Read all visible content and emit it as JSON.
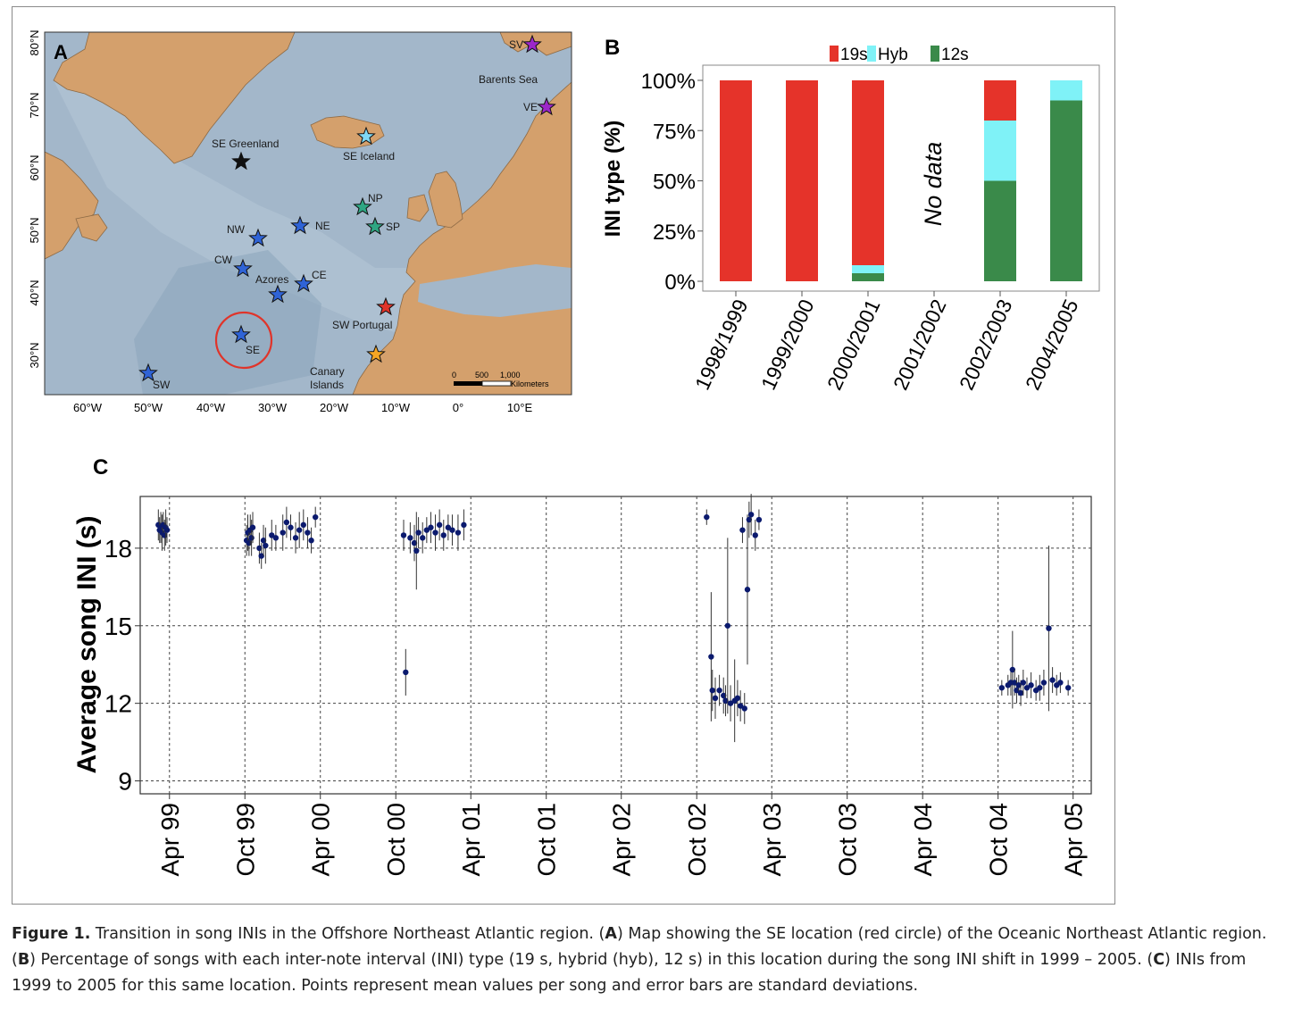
{
  "panels": {
    "a": {
      "letter": "A",
      "lat_labels": [
        "80°N",
        "70°N",
        "60°N",
        "50°N",
        "40°N",
        "30°N"
      ],
      "lon_labels": [
        "60°W",
        "50°W",
        "40°W",
        "30°W",
        "20°W",
        "10°W",
        "0°",
        "10°E"
      ],
      "places": {
        "barents": "Barents Sea",
        "se_greenland": "SE Greenland",
        "se_iceland": "SE Iceland",
        "azores": "Azores",
        "sw_portugal": "SW Portugal",
        "canary": [
          "Canary",
          "Islands"
        ]
      },
      "stations": [
        {
          "code": "SV",
          "color": "#9c27c9"
        },
        {
          "code": "VE",
          "color": "#9c27c9"
        },
        {
          "code": "",
          "color": "#111111"
        },
        {
          "code": "",
          "color": "#7fd8f5"
        },
        {
          "code": "NP",
          "color": "#2fa683"
        },
        {
          "code": "SP",
          "color": "#2fa683"
        },
        {
          "code": "NE",
          "color": "#2f63d6"
        },
        {
          "code": "NW",
          "color": "#2f63d6"
        },
        {
          "code": "CW",
          "color": "#2f63d6"
        },
        {
          "code": "CE",
          "color": "#2f63d6"
        },
        {
          "code": "",
          "color": "#2f63d6"
        },
        {
          "code": "SE",
          "color": "#2f63d6"
        },
        {
          "code": "",
          "color": "#e0342a"
        },
        {
          "code": "",
          "color": "#f5a623"
        },
        {
          "code": "SW",
          "color": "#2f63d6"
        }
      ],
      "scale": {
        "ticks": [
          "0",
          "500",
          "1,000"
        ],
        "unit": "Kilometers"
      },
      "colors": {
        "ocean": "#9fb4c8",
        "land": "#d4a06c",
        "circle": "#e0342a"
      }
    },
    "b": {
      "letter": "B",
      "chart_data": {
        "type": "bar",
        "stacked": true,
        "categories": [
          "1998/1999",
          "1999/2000",
          "2000/2001",
          "2001/2002",
          "2002/2003",
          "2004/2005"
        ],
        "series": [
          {
            "name": "12s",
            "color": "#3a8a4a",
            "values": [
              0,
              0,
              4,
              0,
              50,
              90
            ]
          },
          {
            "name": "Hyb",
            "color": "#7ff2f7",
            "values": [
              0,
              0,
              4,
              0,
              30,
              10
            ]
          },
          {
            "name": "19s",
            "color": "#e5332a",
            "values": [
              100,
              100,
              92,
              0,
              20,
              0
            ]
          }
        ],
        "ylabel": "INI type (%)",
        "yticks": [
          "0%",
          "25%",
          "50%",
          "75%",
          "100%"
        ],
        "ylim": [
          0,
          100
        ],
        "annotation": "No data",
        "legend_position": "top"
      }
    },
    "c": {
      "letter": "C",
      "chart_data": {
        "type": "scatter",
        "error_bars": true,
        "ylabel": "Average song INI (s)",
        "yticks": [
          9,
          12,
          15,
          18
        ],
        "ylim": [
          8.5,
          20
        ],
        "xlim": [
          "1999-01-20",
          "2005-05-15"
        ],
        "xticks": [
          {
            "label": "Apr 99",
            "date": "1999-04-01"
          },
          {
            "label": "Oct 99",
            "date": "1999-10-01"
          },
          {
            "label": "Apr 00",
            "date": "2000-04-01"
          },
          {
            "label": "Oct 00",
            "date": "2000-10-01"
          },
          {
            "label": "Apr 01",
            "date": "2001-04-01"
          },
          {
            "label": "Oct 01",
            "date": "2001-10-01"
          },
          {
            "label": "Apr 02",
            "date": "2002-04-01"
          },
          {
            "label": "Oct 02",
            "date": "2002-10-01"
          },
          {
            "label": "Apr 03",
            "date": "2003-04-01"
          },
          {
            "label": "Oct 03",
            "date": "2003-10-01"
          },
          {
            "label": "Apr 04",
            "date": "2004-04-01"
          },
          {
            "label": "Oct 04",
            "date": "2004-10-01"
          },
          {
            "label": "Apr 05",
            "date": "2005-04-01"
          }
        ],
        "grid": true,
        "point_color": "#0b1a6e",
        "points": [
          {
            "x": "1999-03-05",
            "y": 18.9,
            "sd": 0.6
          },
          {
            "x": "1999-03-08",
            "y": 18.7,
            "sd": 0.5
          },
          {
            "x": "1999-03-11",
            "y": 18.8,
            "sd": 0.6
          },
          {
            "x": "1999-03-14",
            "y": 18.6,
            "sd": 0.7
          },
          {
            "x": "1999-03-17",
            "y": 18.9,
            "sd": 0.5
          },
          {
            "x": "1999-03-20",
            "y": 18.5,
            "sd": 0.6
          },
          {
            "x": "1999-03-23",
            "y": 18.8,
            "sd": 0.7
          },
          {
            "x": "1999-03-26",
            "y": 18.7,
            "sd": 0.5
          },
          {
            "x": "1999-10-05",
            "y": 18.3,
            "sd": 0.6
          },
          {
            "x": "1999-10-08",
            "y": 18.6,
            "sd": 0.7
          },
          {
            "x": "1999-10-11",
            "y": 18.2,
            "sd": 0.5
          },
          {
            "x": "1999-10-14",
            "y": 18.7,
            "sd": 0.6
          },
          {
            "x": "1999-10-17",
            "y": 18.4,
            "sd": 0.7
          },
          {
            "x": "1999-10-20",
            "y": 18.8,
            "sd": 0.6
          },
          {
            "x": "1999-11-05",
            "y": 18.0,
            "sd": 0.6
          },
          {
            "x": "1999-11-10",
            "y": 17.7,
            "sd": 0.5
          },
          {
            "x": "1999-11-15",
            "y": 18.3,
            "sd": 0.6
          },
          {
            "x": "1999-11-20",
            "y": 18.1,
            "sd": 0.7
          },
          {
            "x": "1999-12-05",
            "y": 18.5,
            "sd": 0.6
          },
          {
            "x": "1999-12-15",
            "y": 18.4,
            "sd": 0.5
          },
          {
            "x": "2000-01-01",
            "y": 18.6,
            "sd": 0.7
          },
          {
            "x": "2000-01-10",
            "y": 19.0,
            "sd": 0.6
          },
          {
            "x": "2000-01-20",
            "y": 18.8,
            "sd": 0.5
          },
          {
            "x": "2000-02-01",
            "y": 18.4,
            "sd": 0.6
          },
          {
            "x": "2000-02-10",
            "y": 18.7,
            "sd": 0.7
          },
          {
            "x": "2000-02-20",
            "y": 18.9,
            "sd": 0.6
          },
          {
            "x": "2000-03-01",
            "y": 18.6,
            "sd": 0.6
          },
          {
            "x": "2000-03-10",
            "y": 18.3,
            "sd": 0.5
          },
          {
            "x": "2000-03-20",
            "y": 19.2,
            "sd": 0.4
          },
          {
            "x": "2000-10-20",
            "y": 18.5,
            "sd": 0.6
          },
          {
            "x": "2000-10-25",
            "y": 13.2,
            "sd": 0.9
          },
          {
            "x": "2000-11-05",
            "y": 18.4,
            "sd": 0.6
          },
          {
            "x": "2000-11-15",
            "y": 18.2,
            "sd": 0.7
          },
          {
            "x": "2000-11-20",
            "y": 17.9,
            "sd": 1.5
          },
          {
            "x": "2000-11-25",
            "y": 18.6,
            "sd": 0.6
          },
          {
            "x": "2000-12-05",
            "y": 18.4,
            "sd": 0.6
          },
          {
            "x": "2000-12-15",
            "y": 18.7,
            "sd": 0.5
          },
          {
            "x": "2000-12-25",
            "y": 18.8,
            "sd": 0.6
          },
          {
            "x": "2001-01-05",
            "y": 18.6,
            "sd": 0.7
          },
          {
            "x": "2001-01-15",
            "y": 18.9,
            "sd": 0.6
          },
          {
            "x": "2001-01-25",
            "y": 18.5,
            "sd": 0.6
          },
          {
            "x": "2001-02-05",
            "y": 18.8,
            "sd": 0.5
          },
          {
            "x": "2001-02-15",
            "y": 18.7,
            "sd": 0.6
          },
          {
            "x": "2001-03-01",
            "y": 18.6,
            "sd": 0.7
          },
          {
            "x": "2001-03-15",
            "y": 18.9,
            "sd": 0.6
          },
          {
            "x": "2002-10-25",
            "y": 19.2,
            "sd": 0.3
          },
          {
            "x": "2002-11-05",
            "y": 13.8,
            "sd": 2.5
          },
          {
            "x": "2002-11-08",
            "y": 12.5,
            "sd": 0.8
          },
          {
            "x": "2002-11-15",
            "y": 12.2,
            "sd": 0.8
          },
          {
            "x": "2002-11-25",
            "y": 12.5,
            "sd": 0.6
          },
          {
            "x": "2002-12-05",
            "y": 12.3,
            "sd": 0.7
          },
          {
            "x": "2002-12-10",
            "y": 12.1,
            "sd": 0.6
          },
          {
            "x": "2002-12-15",
            "y": 15.0,
            "sd": 3.4
          },
          {
            "x": "2002-12-22",
            "y": 12.0,
            "sd": 0.7
          },
          {
            "x": "2003-01-01",
            "y": 12.1,
            "sd": 1.6
          },
          {
            "x": "2003-01-08",
            "y": 12.2,
            "sd": 0.7
          },
          {
            "x": "2003-01-15",
            "y": 11.9,
            "sd": 0.6
          },
          {
            "x": "2003-01-20",
            "y": 18.7,
            "sd": 0.5
          },
          {
            "x": "2003-01-25",
            "y": 11.8,
            "sd": 0.6
          },
          {
            "x": "2003-02-01",
            "y": 16.4,
            "sd": 2.9
          },
          {
            "x": "2003-02-05",
            "y": 19.1,
            "sd": 0.7
          },
          {
            "x": "2003-02-10",
            "y": 19.3,
            "sd": 0.8
          },
          {
            "x": "2003-02-20",
            "y": 18.5,
            "sd": 0.6
          },
          {
            "x": "2003-03-01",
            "y": 19.1,
            "sd": 0.4
          },
          {
            "x": "2004-10-10",
            "y": 12.6,
            "sd": 0.3
          },
          {
            "x": "2004-10-25",
            "y": 12.7,
            "sd": 0.4
          },
          {
            "x": "2004-11-01",
            "y": 12.8,
            "sd": 0.5
          },
          {
            "x": "2004-11-05",
            "y": 13.3,
            "sd": 1.5
          },
          {
            "x": "2004-11-10",
            "y": 12.8,
            "sd": 0.5
          },
          {
            "x": "2004-11-15",
            "y": 12.5,
            "sd": 0.5
          },
          {
            "x": "2004-11-20",
            "y": 12.7,
            "sd": 0.4
          },
          {
            "x": "2004-11-25",
            "y": 12.4,
            "sd": 0.5
          },
          {
            "x": "2004-12-01",
            "y": 12.8,
            "sd": 0.5
          },
          {
            "x": "2004-12-10",
            "y": 12.6,
            "sd": 0.4
          },
          {
            "x": "2004-12-20",
            "y": 12.7,
            "sd": 0.5
          },
          {
            "x": "2005-01-01",
            "y": 12.5,
            "sd": 0.4
          },
          {
            "x": "2005-01-10",
            "y": 12.6,
            "sd": 0.5
          },
          {
            "x": "2005-01-20",
            "y": 12.8,
            "sd": 0.5
          },
          {
            "x": "2005-02-01",
            "y": 14.9,
            "sd": 3.2
          },
          {
            "x": "2005-02-10",
            "y": 12.9,
            "sd": 0.5
          },
          {
            "x": "2005-02-20",
            "y": 12.7,
            "sd": 0.4
          },
          {
            "x": "2005-03-01",
            "y": 12.8,
            "sd": 0.4
          },
          {
            "x": "2005-03-20",
            "y": 12.6,
            "sd": 0.3
          }
        ]
      }
    }
  },
  "caption": {
    "label": "Figure 1.",
    "part1": " Transition in song INIs in the Offshore Northeast Atlantic region. (",
    "a": "A",
    "part2": ") Map showing the SE location (red circle) of the Oceanic Northeast Atlantic region. (",
    "b": "B",
    "part3": ") Percentage of songs with each inter-note interval (INI) type (19 s, hybrid (hyb), 12 s) in this location during the song INI shift in 1999 – 2005. (",
    "c": "C",
    "part4": ") INIs from 1999 to 2005 for this same location. Points represent mean values per song and error bars are standard deviations."
  }
}
